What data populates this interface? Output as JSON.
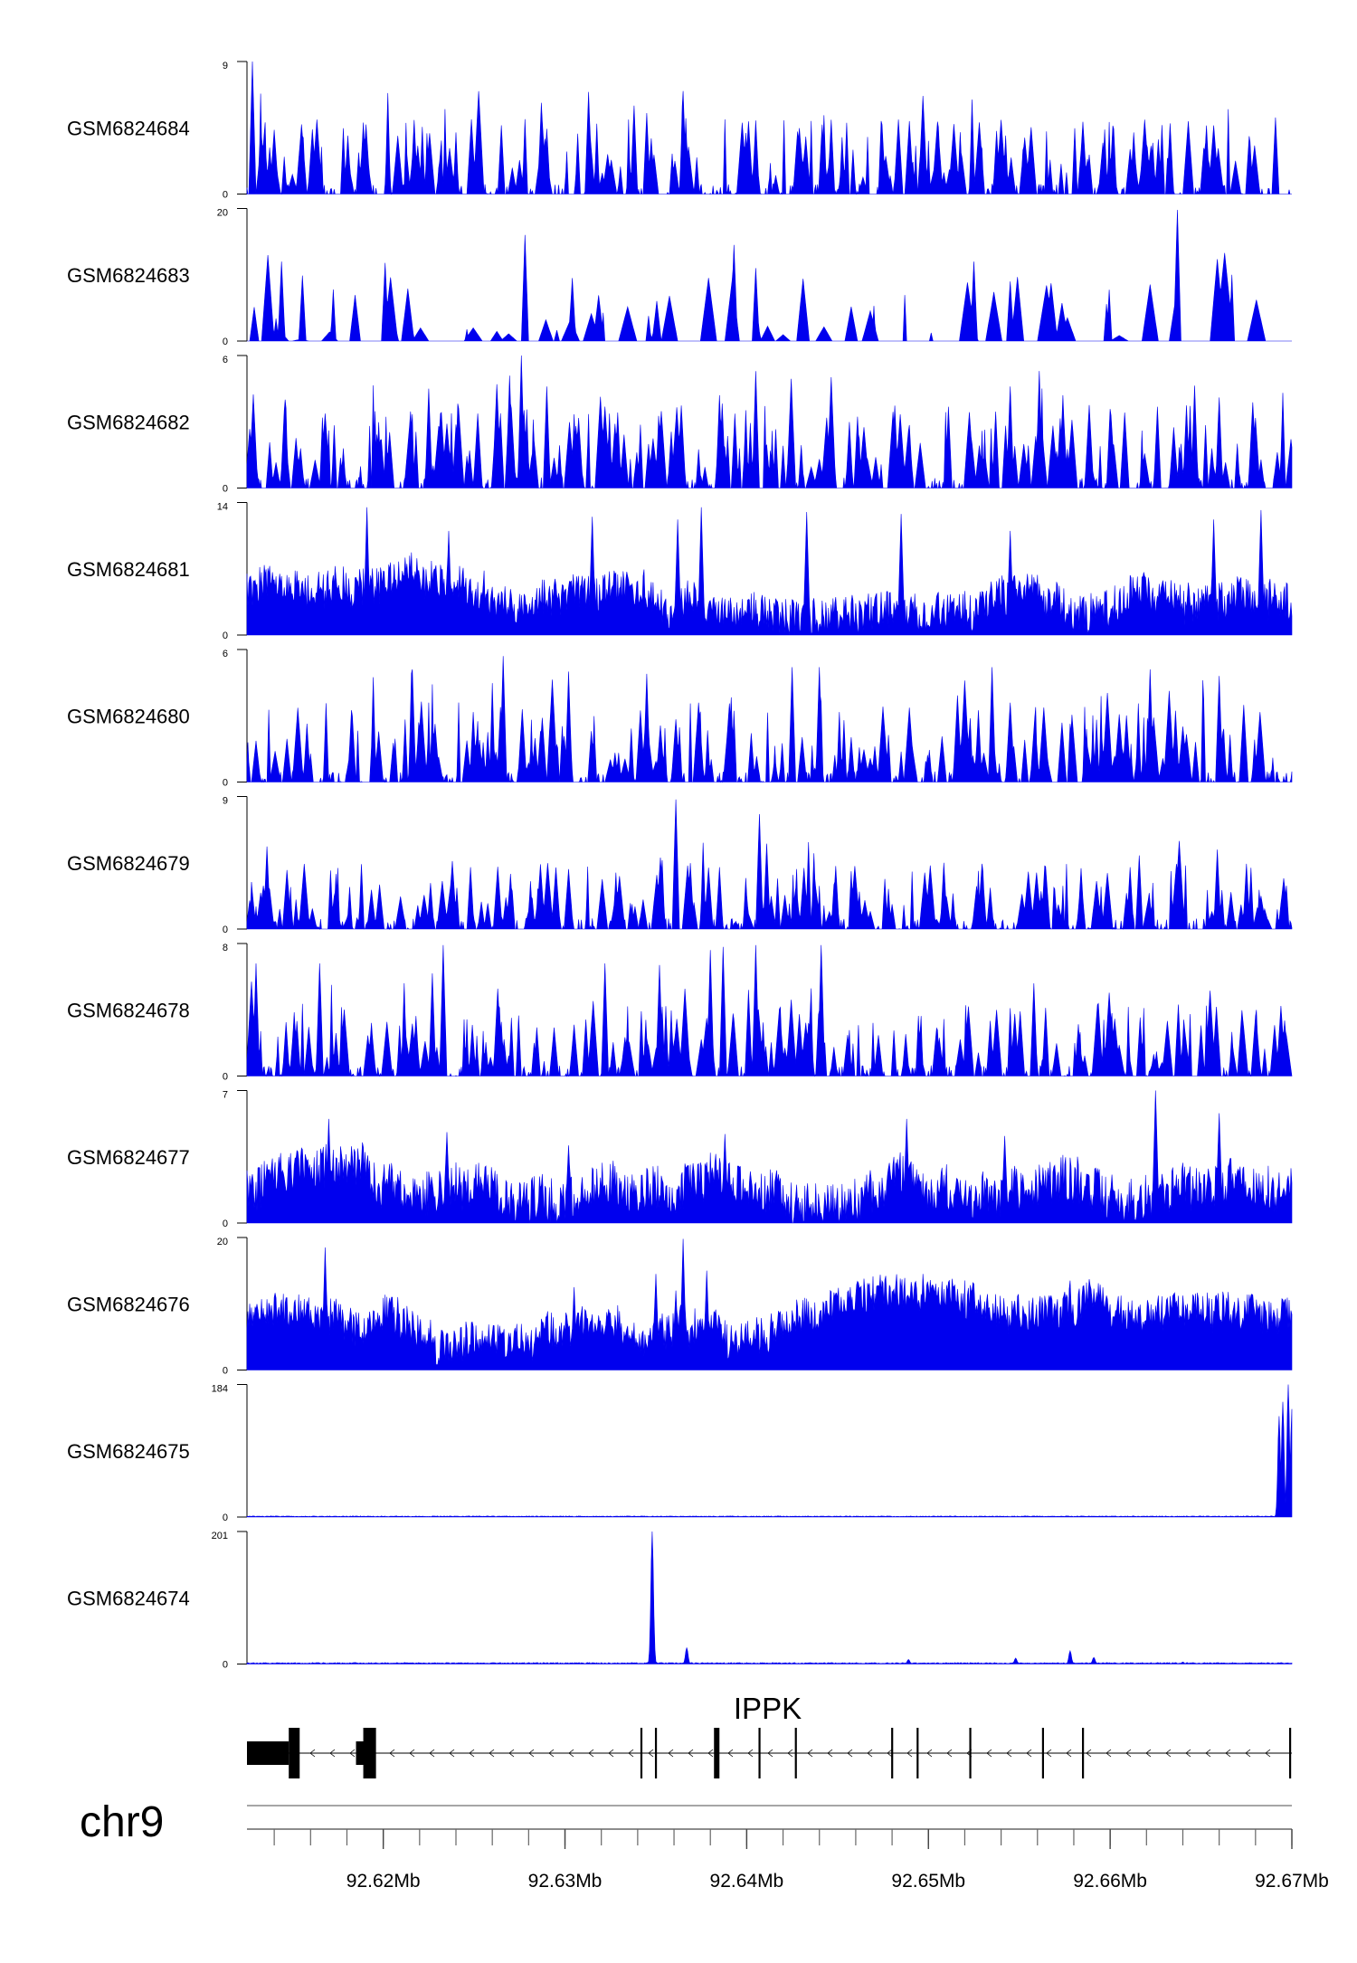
{
  "chart_data": {
    "type": "area",
    "chromosome": "chr9",
    "xlim": [
      92.6125,
      92.67
    ],
    "x_unit": "Mb",
    "x_ticks": [
      {
        "value": 92.62,
        "label": "92.62Mb"
      },
      {
        "value": 92.63,
        "label": "92.63Mb"
      },
      {
        "value": 92.64,
        "label": "92.64Mb"
      },
      {
        "value": 92.65,
        "label": "92.65Mb"
      },
      {
        "value": 92.66,
        "label": "92.66Mb"
      },
      {
        "value": 92.67,
        "label": "92.67Mb"
      }
    ],
    "series_color": "#0000ee",
    "tracks": [
      {
        "name": "GSM6824684",
        "ylim": [
          0,
          9
        ],
        "ymin_label": "0",
        "ymax_label": "9",
        "pattern": "spiky",
        "base": 0.12,
        "amp": 0.45,
        "peaks": [
          [
            92.6128,
            9.0
          ],
          [
            92.6287,
            6.2
          ],
          [
            92.6338,
            6.0
          ],
          [
            92.6345,
            5.5
          ],
          [
            92.6365,
            7.0
          ],
          [
            92.6405,
            5.0
          ],
          [
            92.6633,
            4.8
          ],
          [
            92.6691,
            5.2
          ]
        ]
      },
      {
        "name": "GSM6824683",
        "ylim": [
          0,
          20
        ],
        "ymin_label": "0",
        "ymax_label": "20",
        "pattern": "sparse",
        "base": 0.0,
        "amp": 0.5,
        "peaks": [
          [
            92.6144,
            12.0
          ],
          [
            92.6201,
            11.8
          ],
          [
            92.6278,
            16.0
          ],
          [
            92.6304,
            9.5
          ],
          [
            92.6393,
            14.5
          ],
          [
            92.6405,
            11.0
          ],
          [
            92.6525,
            12.0
          ],
          [
            92.6545,
            9.0
          ],
          [
            92.6637,
            19.8
          ]
        ]
      },
      {
        "name": "GSM6824682",
        "ylim": [
          0,
          6
        ],
        "ymin_label": "0",
        "ymax_label": "6",
        "pattern": "spiky",
        "base": 0.15,
        "amp": 0.5,
        "peaks": [
          [
            92.6146,
            4.0
          ],
          [
            92.6225,
            4.5
          ],
          [
            92.6276,
            6.0
          ],
          [
            92.629,
            4.6
          ],
          [
            92.6385,
            4.2
          ],
          [
            92.6545,
            4.6
          ],
          [
            92.6561,
            5.3
          ],
          [
            92.6574,
            4.2
          ],
          [
            92.666,
            4.1
          ]
        ]
      },
      {
        "name": "GSM6824681",
        "ylim": [
          0,
          14
        ],
        "ymin_label": "0",
        "ymax_label": "14",
        "pattern": "dense",
        "base": 0.35,
        "amp": 0.3,
        "peaks": [
          [
            92.6191,
            13.5
          ],
          [
            92.6236,
            11.0
          ],
          [
            92.6315,
            12.5
          ],
          [
            92.6362,
            12.2
          ],
          [
            92.6375,
            13.5
          ],
          [
            92.6433,
            13.0
          ],
          [
            92.6485,
            12.8
          ],
          [
            92.6545,
            11.0
          ],
          [
            92.6657,
            12.2
          ],
          [
            92.6683,
            13.2
          ],
          [
            92.6695,
            2.2
          ]
        ]
      },
      {
        "name": "GSM6824680",
        "ylim": [
          0,
          6
        ],
        "ymin_label": "0",
        "ymax_label": "6",
        "pattern": "spiky",
        "base": 0.1,
        "amp": 0.5,
        "peaks": [
          [
            92.6216,
            5.1
          ],
          [
            92.6266,
            5.7
          ],
          [
            92.6302,
            5.0
          ],
          [
            92.6345,
            4.9
          ],
          [
            92.6425,
            5.2
          ],
          [
            92.644,
            5.2
          ],
          [
            92.6535,
            5.2
          ],
          [
            92.6622,
            5.1
          ],
          [
            92.666,
            4.8
          ]
        ]
      },
      {
        "name": "GSM6824679",
        "ylim": [
          0,
          9
        ],
        "ymin_label": "0",
        "ymax_label": "9",
        "pattern": "spiky",
        "base": 0.05,
        "amp": 0.45,
        "peaks": [
          [
            92.6136,
            5.6
          ],
          [
            92.6248,
            4.2
          ],
          [
            92.6361,
            8.8
          ],
          [
            92.6407,
            7.8
          ],
          [
            92.6411,
            5.8
          ],
          [
            92.6616,
            5.0
          ],
          [
            92.6659,
            5.4
          ]
        ]
      },
      {
        "name": "GSM6824678",
        "ylim": [
          0,
          8
        ],
        "ymin_label": "0",
        "ymax_label": "8",
        "pattern": "spiky",
        "base": 0.1,
        "amp": 0.45,
        "peaks": [
          [
            92.613,
            6.8
          ],
          [
            92.6165,
            6.8
          ],
          [
            92.6227,
            6.2
          ],
          [
            92.6233,
            7.9
          ],
          [
            92.6322,
            6.8
          ],
          [
            92.6352,
            6.7
          ],
          [
            92.638,
            7.6
          ],
          [
            92.6387,
            7.8
          ],
          [
            92.6401,
            5.2
          ],
          [
            92.6405,
            7.9
          ],
          [
            92.6441,
            7.9
          ],
          [
            92.6558,
            5.6
          ]
        ]
      },
      {
        "name": "GSM6824677",
        "ylim": [
          0,
          7
        ],
        "ymin_label": "0",
        "ymax_label": "7",
        "pattern": "dense",
        "base": 0.25,
        "amp": 0.35,
        "peaks": [
          [
            92.617,
            5.5
          ],
          [
            92.6235,
            4.8
          ],
          [
            92.6302,
            4.1
          ],
          [
            92.6388,
            4.7
          ],
          [
            92.6488,
            5.5
          ],
          [
            92.6542,
            4.6
          ],
          [
            92.6625,
            7.0
          ],
          [
            92.666,
            5.8
          ],
          [
            92.6698,
            2.5
          ]
        ]
      },
      {
        "name": "GSM6824676",
        "ylim": [
          0,
          20
        ],
        "ymin_label": "0",
        "ymax_label": "20",
        "pattern": "dense",
        "base": 0.4,
        "amp": 0.28,
        "peaks": [
          [
            92.6168,
            18.5
          ],
          [
            92.6208,
            11.0
          ],
          [
            92.6305,
            12.5
          ],
          [
            92.635,
            14.5
          ],
          [
            92.6361,
            12.0
          ],
          [
            92.6365,
            19.8
          ],
          [
            92.6378,
            15.0
          ],
          [
            92.6497,
            14.5
          ],
          [
            92.6578,
            13.5
          ]
        ]
      },
      {
        "name": "GSM6824675",
        "ylim": [
          0,
          184
        ],
        "ymin_label": "0",
        "ymax_label": "184",
        "pattern": "flat",
        "base": 1.0,
        "amp": 0.01,
        "peaks": [
          [
            92.6693,
            140.0
          ],
          [
            92.6695,
            160.0
          ],
          [
            92.6698,
            184.0
          ],
          [
            92.67,
            150.0
          ]
        ]
      },
      {
        "name": "GSM6824674",
        "ylim": [
          0,
          201
        ],
        "ymin_label": "0",
        "ymax_label": "201",
        "pattern": "flat",
        "base": 1.5,
        "amp": 0.01,
        "peaks": [
          [
            92.6348,
            201.0
          ],
          [
            92.6367,
            25.0
          ],
          [
            92.6489,
            7.0
          ],
          [
            92.6548,
            9.0
          ],
          [
            92.6578,
            20.0
          ],
          [
            92.6591,
            10.0
          ],
          [
            92.664,
            3.0
          ]
        ]
      }
    ],
    "gene": {
      "name": "IPPK",
      "strand": "-",
      "start": 92.6125,
      "end": 92.67,
      "utr_blocks": [
        [
          92.6125,
          92.6148
        ],
        [
          92.6185,
          92.619
        ]
      ],
      "cds_blocks": [
        [
          92.6148,
          92.6154
        ],
        [
          92.6189,
          92.6196
        ],
        [
          92.6382,
          92.6385
        ]
      ],
      "exon_lines": [
        92.6342,
        92.635,
        92.6384,
        92.6407,
        92.6427,
        92.648,
        92.6494,
        92.6523,
        92.6563,
        92.6585,
        92.6699
      ]
    }
  }
}
